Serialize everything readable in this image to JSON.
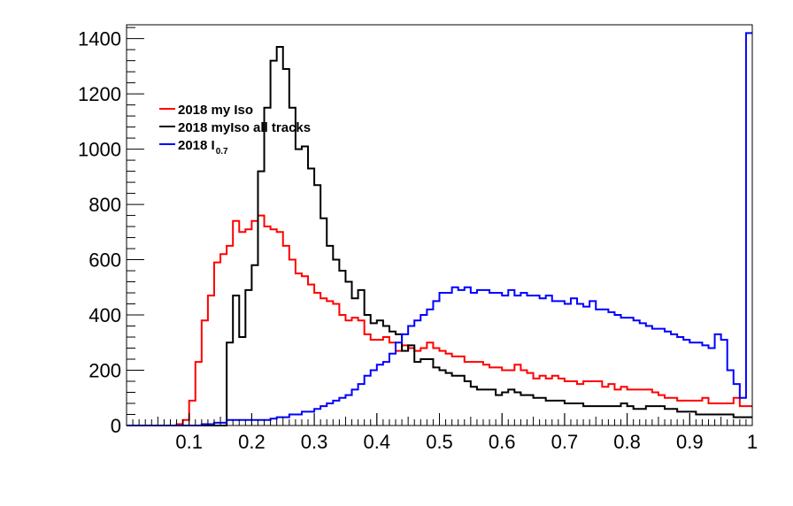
{
  "chart_data": {
    "type": "histogram",
    "title": "",
    "xlabel": "",
    "ylabel": "",
    "xlim": [
      0,
      1
    ],
    "ylim": [
      0,
      1450
    ],
    "x_ticks": [
      {
        "value": 0.1,
        "label": "0.1"
      },
      {
        "value": 0.2,
        "label": "0.2"
      },
      {
        "value": 0.3,
        "label": "0.3"
      },
      {
        "value": 0.4,
        "label": "0.4"
      },
      {
        "value": 0.5,
        "label": "0.5"
      },
      {
        "value": 0.6,
        "label": "0.6"
      },
      {
        "value": 0.7,
        "label": "0.7"
      },
      {
        "value": 0.8,
        "label": "0.8"
      },
      {
        "value": 0.9,
        "label": "0.9"
      },
      {
        "value": 1.0,
        "label": "1"
      }
    ],
    "y_ticks": [
      {
        "value": 0,
        "label": "0"
      },
      {
        "value": 200,
        "label": "200"
      },
      {
        "value": 400,
        "label": "400"
      },
      {
        "value": 600,
        "label": "600"
      },
      {
        "value": 800,
        "label": "800"
      },
      {
        "value": 1000,
        "label": "1000"
      },
      {
        "value": 1200,
        "label": "1200"
      },
      {
        "value": 1400,
        "label": "1400"
      }
    ],
    "bin_width": 0.01,
    "grid": false,
    "legend_position": "top-left",
    "series": [
      {
        "name": "2018 my Iso",
        "color": "#ff0000",
        "values": [
          0,
          0,
          0,
          0,
          0,
          0,
          0,
          0,
          5,
          20,
          90,
          230,
          380,
          470,
          590,
          620,
          650,
          740,
          700,
          710,
          740,
          760,
          720,
          710,
          700,
          650,
          600,
          550,
          540,
          510,
          480,
          460,
          450,
          440,
          400,
          380,
          390,
          380,
          330,
          310,
          310,
          320,
          300,
          270,
          290,
          280,
          270,
          280,
          300,
          280,
          270,
          260,
          250,
          250,
          230,
          230,
          230,
          220,
          210,
          210,
          200,
          200,
          220,
          200,
          190,
          170,
          180,
          170,
          180,
          170,
          160,
          160,
          150,
          160,
          160,
          160,
          140,
          150,
          130,
          140,
          130,
          130,
          130,
          130,
          120,
          110,
          100,
          100,
          90,
          90,
          90,
          90,
          100,
          80,
          80,
          80,
          80,
          100,
          70,
          70
        ]
      },
      {
        "name": "2018 myIso all tracks",
        "color": "#000000",
        "values": [
          0,
          0,
          0,
          0,
          0,
          0,
          0,
          0,
          0,
          0,
          0,
          0,
          0,
          0,
          0,
          0,
          300,
          470,
          320,
          490,
          580,
          920,
          1150,
          1320,
          1370,
          1290,
          1150,
          1000,
          1010,
          930,
          870,
          750,
          650,
          600,
          560,
          520,
          460,
          490,
          400,
          370,
          380,
          360,
          340,
          330,
          270,
          290,
          230,
          240,
          240,
          210,
          200,
          190,
          180,
          180,
          160,
          140,
          130,
          130,
          130,
          110,
          120,
          130,
          120,
          110,
          110,
          100,
          100,
          90,
          90,
          90,
          80,
          80,
          80,
          70,
          70,
          70,
          70,
          70,
          70,
          80,
          70,
          60,
          60,
          70,
          70,
          70,
          60,
          60,
          50,
          50,
          50,
          40,
          40,
          40,
          40,
          40,
          40,
          30,
          30,
          30
        ]
      },
      {
        "name": "2018 I",
        "name_sub": "0.7",
        "color": "#0000ff",
        "values": [
          0,
          0,
          0,
          0,
          0,
          0,
          0,
          0,
          0,
          0,
          0,
          0,
          5,
          5,
          10,
          10,
          20,
          20,
          20,
          20,
          20,
          20,
          20,
          25,
          30,
          30,
          40,
          40,
          50,
          50,
          60,
          70,
          80,
          90,
          100,
          110,
          130,
          150,
          180,
          200,
          220,
          230,
          260,
          300,
          330,
          360,
          380,
          400,
          420,
          450,
          480,
          480,
          500,
          490,
          500,
          480,
          490,
          490,
          480,
          480,
          470,
          490,
          470,
          480,
          470,
          470,
          460,
          470,
          450,
          450,
          440,
          460,
          440,
          430,
          450,
          420,
          420,
          410,
          400,
          390,
          390,
          380,
          370,
          360,
          350,
          350,
          340,
          330,
          320,
          310,
          300,
          300,
          290,
          280,
          330,
          310,
          200,
          150,
          100,
          1420
        ]
      }
    ]
  }
}
